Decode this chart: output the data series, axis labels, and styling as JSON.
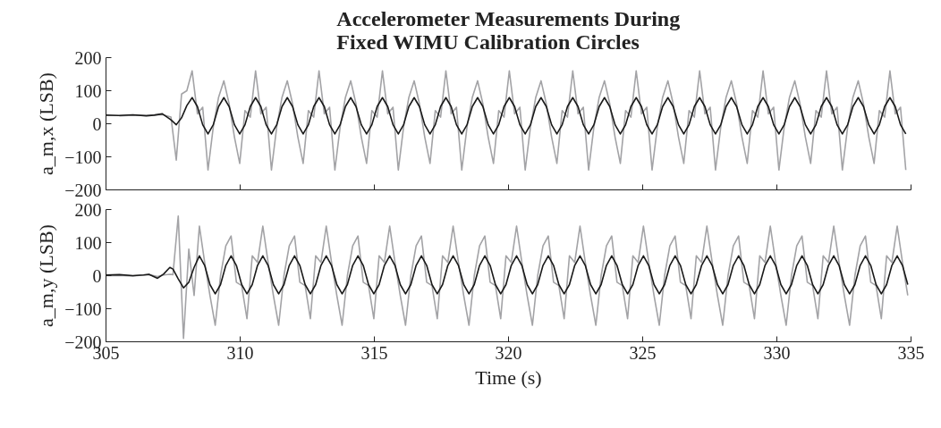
{
  "chart_data": [
    {
      "type": "line",
      "title": "Accelerometer Measurements During\nFixed WIMU Calibration Circles",
      "ylabel": "a_m,x (LSB)",
      "xlim": [
        305,
        335
      ],
      "xticks": [
        305,
        310,
        315,
        320,
        325,
        330,
        335
      ],
      "ylim": [
        -200,
        200
      ],
      "yticks": [
        -200,
        -100,
        0,
        100,
        200
      ],
      "tick_labels": "y",
      "grid": false,
      "series": [
        {
          "color": "#a3a3a6",
          "x": [
            305.5,
            306,
            306.5,
            306.8,
            307.1,
            307.422,
            307.619,
            307.816,
            308.013,
            308.21,
            308.407,
            308.604,
            308.801,
            308.998,
            309.195,
            309.392,
            309.589,
            309.786,
            309.983,
            310.18,
            310.377,
            310.574,
            310.771,
            310.968,
            311.165,
            311.362,
            311.559,
            311.756,
            311.953,
            312.15,
            312.347,
            312.544,
            312.741,
            312.938,
            313.135,
            313.332,
            313.529,
            313.726,
            313.923,
            314.12,
            314.317,
            314.514,
            314.711,
            314.908,
            315.105,
            315.302,
            315.499,
            315.696,
            315.893,
            316.09,
            316.287,
            316.484,
            316.681,
            316.878,
            317.075,
            317.272,
            317.469,
            317.666,
            317.863,
            318.06,
            318.257,
            318.454,
            318.651,
            318.848,
            319.045,
            319.242,
            319.439,
            319.636,
            319.833,
            320.03,
            320.227,
            320.424,
            320.621,
            320.818,
            321.015,
            321.212,
            321.409,
            321.606,
            321.803,
            322.0,
            322.197,
            322.394,
            322.591,
            322.788,
            322.985,
            323.182,
            323.379,
            323.576,
            323.773,
            323.97,
            324.167,
            324.364,
            324.561,
            324.758,
            324.955,
            325.152,
            325.349,
            325.546,
            325.743,
            325.94,
            326.137,
            326.334,
            326.531,
            326.728,
            326.925,
            327.122,
            327.319,
            327.516,
            327.713,
            327.91,
            328.107,
            328.304,
            328.501,
            328.698,
            328.895,
            329.092,
            329.289,
            329.486,
            329.683,
            329.88,
            330.077,
            330.274,
            330.471,
            330.668,
            330.865,
            331.062,
            331.259,
            331.456,
            331.653,
            331.85,
            332.047,
            332.244,
            332.441,
            332.638,
            332.835,
            333.032,
            333.229,
            333.426,
            333.623,
            333.82,
            334.017,
            334.214,
            334.411,
            334.608,
            334.805
          ],
          "values": [
            24,
            26,
            25,
            27,
            28,
            20,
            -110,
            90,
            100,
            160,
            30,
            50,
            -140,
            -10,
            80,
            130,
            60,
            -40,
            -120,
            40,
            20,
            160,
            30,
            50,
            -140,
            -10,
            80,
            130,
            60,
            -40,
            -120,
            40,
            20,
            160,
            30,
            50,
            -140,
            -10,
            80,
            130,
            60,
            -40,
            -120,
            40,
            20,
            160,
            30,
            50,
            -140,
            -10,
            80,
            130,
            60,
            -40,
            -120,
            40,
            20,
            160,
            30,
            50,
            -140,
            -10,
            80,
            130,
            60,
            -40,
            -120,
            40,
            20,
            160,
            30,
            50,
            -140,
            -10,
            80,
            130,
            60,
            -40,
            -120,
            40,
            20,
            160,
            30,
            50,
            -140,
            -10,
            80,
            130,
            60,
            -40,
            -120,
            40,
            20,
            160,
            30,
            50,
            -140,
            -10,
            80,
            130,
            60,
            -40,
            -120,
            40,
            20,
            160,
            30,
            50,
            -140,
            -10,
            80,
            130,
            60,
            -40,
            -120,
            40,
            20,
            160,
            30,
            50,
            -140,
            -10,
            80,
            130,
            60,
            -40,
            -120,
            40,
            20,
            160,
            30,
            50,
            -140,
            -10,
            80,
            130,
            60,
            -40,
            -120,
            40,
            20,
            160,
            30,
            50,
            -140
          ]
        },
        {
          "color": "#1a1a1a",
          "x": [
            305,
            305.5,
            306,
            306.5,
            306.8,
            307.1,
            307.422,
            307.619,
            307.816,
            308.013,
            308.21,
            308.407,
            308.604,
            308.801,
            308.998,
            309.195,
            309.392,
            309.589,
            309.786,
            309.983,
            310.18,
            310.377,
            310.574,
            310.771,
            310.968,
            311.165,
            311.362,
            311.559,
            311.756,
            311.953,
            312.15,
            312.347,
            312.544,
            312.741,
            312.938,
            313.135,
            313.332,
            313.529,
            313.726,
            313.923,
            314.12,
            314.317,
            314.514,
            314.711,
            314.908,
            315.105,
            315.302,
            315.499,
            315.696,
            315.893,
            316.09,
            316.287,
            316.484,
            316.681,
            316.878,
            317.075,
            317.272,
            317.469,
            317.666,
            317.863,
            318.06,
            318.257,
            318.454,
            318.651,
            318.848,
            319.045,
            319.242,
            319.439,
            319.636,
            319.833,
            320.03,
            320.227,
            320.424,
            320.621,
            320.818,
            321.015,
            321.212,
            321.409,
            321.606,
            321.803,
            322.0,
            322.197,
            322.394,
            322.591,
            322.788,
            322.985,
            323.182,
            323.379,
            323.576,
            323.773,
            323.97,
            324.167,
            324.364,
            324.561,
            324.758,
            324.955,
            325.152,
            325.349,
            325.546,
            325.743,
            325.94,
            326.137,
            326.334,
            326.531,
            326.728,
            326.925,
            327.122,
            327.319,
            327.516,
            327.713,
            327.91,
            328.107,
            328.304,
            328.501,
            328.698,
            328.895,
            329.092,
            329.289,
            329.486,
            329.683,
            329.88,
            330.077,
            330.274,
            330.471,
            330.668,
            330.865,
            331.062,
            331.259,
            331.456,
            331.653,
            331.85,
            332.047,
            332.244,
            332.441,
            332.638,
            332.835,
            333.032,
            333.229,
            333.426,
            333.623,
            333.82,
            334.017,
            334.214,
            334.411,
            334.608,
            334.805
          ],
          "values": [
            26,
            25,
            27,
            24,
            26,
            30,
            12,
            -3,
            18,
            55,
            79,
            52,
            -3,
            -31,
            -3,
            52,
            79,
            52,
            -3,
            -31,
            -3,
            52,
            79,
            52,
            -3,
            -31,
            -3,
            52,
            79,
            52,
            -3,
            -31,
            -3,
            52,
            79,
            52,
            -3,
            -31,
            -3,
            52,
            79,
            52,
            -3,
            -31,
            -3,
            52,
            79,
            52,
            -3,
            -31,
            -3,
            52,
            79,
            52,
            -3,
            -31,
            -3,
            52,
            79,
            52,
            -3,
            -31,
            -3,
            52,
            79,
            52,
            -3,
            -31,
            -3,
            52,
            79,
            52,
            -3,
            -31,
            -3,
            52,
            79,
            52,
            -3,
            -31,
            -3,
            52,
            79,
            52,
            -3,
            -31,
            -3,
            52,
            79,
            52,
            -3,
            -31,
            -3,
            52,
            79,
            52,
            -3,
            -31,
            -3,
            52,
            79,
            52,
            -3,
            -31,
            -3,
            52,
            79,
            52,
            -3,
            -31,
            -3,
            52,
            79,
            52,
            -3,
            -31,
            -3,
            52,
            79,
            52,
            -3,
            -31,
            -3,
            52,
            79,
            52,
            -3,
            -31,
            -3,
            52,
            79,
            52,
            -3,
            -31,
            -3,
            52,
            79,
            52,
            -3,
            -31,
            -3,
            52,
            79,
            52,
            -3,
            -31
          ]
        }
      ]
    },
    {
      "type": "line",
      "xlabel": "Time (s)",
      "ylabel": "a_m,y (LSB)",
      "xlim": [
        305,
        335
      ],
      "xticks": [
        305,
        310,
        315,
        320,
        325,
        330,
        335
      ],
      "ylim": [
        -200,
        200
      ],
      "yticks": [
        -200,
        -100,
        0,
        100,
        200
      ],
      "grid": false,
      "series": [
        {
          "color": "#a3a3a6",
          "x": [
            305,
            305.5,
            306,
            306.4,
            306.6,
            306.92,
            307.15,
            307.38,
            307.495,
            307.692,
            307.889,
            308.086,
            308.283,
            308.48,
            308.677,
            308.874,
            309.071,
            309.268,
            309.465,
            309.662,
            309.859,
            310.056,
            310.253,
            310.45,
            310.647,
            310.844,
            311.041,
            311.238,
            311.435,
            311.632,
            311.829,
            312.026,
            312.223,
            312.42,
            312.617,
            312.814,
            313.011,
            313.208,
            313.405,
            313.602,
            313.799,
            313.996,
            314.193,
            314.39,
            314.587,
            314.784,
            314.981,
            315.178,
            315.375,
            315.572,
            315.769,
            315.966,
            316.163,
            316.36,
            316.557,
            316.754,
            316.951,
            317.148,
            317.345,
            317.542,
            317.739,
            317.936,
            318.133,
            318.33,
            318.527,
            318.724,
            318.921,
            319.118,
            319.315,
            319.512,
            319.709,
            319.906,
            320.103,
            320.3,
            320.497,
            320.694,
            320.891,
            321.088,
            321.285,
            321.482,
            321.679,
            321.876,
            322.073,
            322.27,
            322.467,
            322.664,
            322.861,
            323.058,
            323.255,
            323.452,
            323.649,
            323.846,
            324.043,
            324.24,
            324.437,
            324.634,
            324.831,
            325.028,
            325.225,
            325.422,
            325.619,
            325.816,
            326.013,
            326.21,
            326.407,
            326.604,
            326.801,
            326.998,
            327.195,
            327.392,
            327.589,
            327.786,
            327.983,
            328.18,
            328.377,
            328.574,
            328.771,
            328.968,
            329.165,
            329.362,
            329.559,
            329.756,
            329.953,
            330.15,
            330.347,
            330.544,
            330.741,
            330.938,
            331.135,
            331.332,
            331.529,
            331.726,
            331.923,
            332.12,
            332.317,
            332.514,
            332.711,
            332.908,
            333.105,
            333.302,
            333.499,
            333.696,
            333.893,
            334.09,
            334.287,
            334.484,
            334.681,
            334.878
          ],
          "values": [
            0,
            1,
            -1,
            2,
            3,
            -3,
            2,
            4,
            3,
            180,
            -190,
            80,
            -60,
            150,
            40,
            -60,
            -150,
            0,
            90,
            120,
            -20,
            -30,
            -130,
            60,
            40,
            150,
            40,
            -60,
            -150,
            0,
            90,
            120,
            -20,
            -30,
            -130,
            60,
            40,
            150,
            40,
            -60,
            -150,
            0,
            90,
            120,
            -20,
            -30,
            -130,
            60,
            40,
            150,
            40,
            -60,
            -150,
            0,
            90,
            120,
            -20,
            -30,
            -130,
            60,
            40,
            150,
            40,
            -60,
            -150,
            0,
            90,
            120,
            -20,
            -30,
            -130,
            60,
            40,
            150,
            40,
            -60,
            -150,
            0,
            90,
            120,
            -20,
            -30,
            -130,
            60,
            40,
            150,
            40,
            -60,
            -150,
            0,
            90,
            120,
            -20,
            -30,
            -130,
            60,
            40,
            150,
            40,
            -60,
            -150,
            0,
            90,
            120,
            -20,
            -30,
            -130,
            60,
            40,
            150,
            40,
            -60,
            -150,
            0,
            90,
            120,
            -20,
            -30,
            -130,
            60,
            40,
            150,
            40,
            -60,
            -150,
            0,
            90,
            120,
            -20,
            -30,
            -130,
            60,
            40,
            150,
            40,
            -60,
            -150,
            0,
            90,
            120,
            -20,
            -30,
            -130,
            60,
            40,
            150,
            40,
            -60
          ]
        },
        {
          "color": "#1a1a1a",
          "x": [
            305,
            305.5,
            306,
            306.4,
            306.6,
            306.92,
            307.15,
            307.38,
            307.495,
            307.692,
            307.889,
            308.086,
            308.283,
            308.48,
            308.677,
            308.874,
            309.071,
            309.268,
            309.465,
            309.662,
            309.859,
            310.056,
            310.253,
            310.45,
            310.647,
            310.844,
            311.041,
            311.238,
            311.435,
            311.632,
            311.829,
            312.026,
            312.223,
            312.42,
            312.617,
            312.814,
            313.011,
            313.208,
            313.405,
            313.602,
            313.799,
            313.996,
            314.193,
            314.39,
            314.587,
            314.784,
            314.981,
            315.178,
            315.375,
            315.572,
            315.769,
            315.966,
            316.163,
            316.36,
            316.557,
            316.754,
            316.951,
            317.148,
            317.345,
            317.542,
            317.739,
            317.936,
            318.133,
            318.33,
            318.527,
            318.724,
            318.921,
            319.118,
            319.315,
            319.512,
            319.709,
            319.906,
            320.103,
            320.3,
            320.497,
            320.694,
            320.891,
            321.088,
            321.285,
            321.482,
            321.679,
            321.876,
            322.073,
            322.27,
            322.467,
            322.664,
            322.861,
            323.058,
            323.255,
            323.452,
            323.649,
            323.846,
            324.043,
            324.24,
            324.437,
            324.634,
            324.831,
            325.028,
            325.225,
            325.422,
            325.619,
            325.816,
            326.013,
            326.21,
            326.407,
            326.604,
            326.801,
            326.998,
            327.195,
            327.392,
            327.589,
            327.786,
            327.983,
            328.18,
            328.377,
            328.574,
            328.771,
            328.968,
            329.165,
            329.362,
            329.559,
            329.756,
            329.953,
            330.15,
            330.347,
            330.544,
            330.741,
            330.938,
            331.135,
            331.332,
            331.529,
            331.726,
            331.923,
            332.12,
            332.317,
            332.514,
            332.711,
            332.908,
            333.105,
            333.302,
            333.499,
            333.696,
            333.893,
            334.09,
            334.287,
            334.484,
            334.681,
            334.878
          ],
          "values": [
            2,
            3,
            0,
            2,
            4,
            -8,
            5,
            25,
            20,
            -10,
            -37,
            -20,
            25,
            60,
            31,
            -27,
            -55,
            -27,
            31,
            60,
            31,
            -27,
            -55,
            -27,
            31,
            60,
            31,
            -27,
            -55,
            -27,
            31,
            60,
            31,
            -27,
            -55,
            -27,
            31,
            60,
            31,
            -27,
            -55,
            -27,
            31,
            60,
            31,
            -27,
            -55,
            -27,
            31,
            60,
            31,
            -27,
            -55,
            -27,
            31,
            60,
            31,
            -27,
            -55,
            -27,
            31,
            60,
            31,
            -27,
            -55,
            -27,
            31,
            60,
            31,
            -27,
            -55,
            -27,
            31,
            60,
            31,
            -27,
            -55,
            -27,
            31,
            60,
            31,
            -27,
            -55,
            -27,
            31,
            60,
            31,
            -27,
            -55,
            -27,
            31,
            60,
            31,
            -27,
            -55,
            -27,
            31,
            60,
            31,
            -27,
            -55,
            -27,
            31,
            60,
            31,
            -27,
            -55,
            -27,
            31,
            60,
            31,
            -27,
            -55,
            -27,
            31,
            60,
            31,
            -27,
            -55,
            -27,
            31,
            60,
            31,
            -27,
            -55,
            -27,
            31,
            60,
            31,
            -27,
            -55,
            -27,
            31,
            60,
            31,
            -27,
            -55,
            -27,
            31,
            60,
            31,
            -27,
            -55,
            -27,
            31,
            60,
            31,
            -27
          ]
        }
      ]
    }
  ]
}
